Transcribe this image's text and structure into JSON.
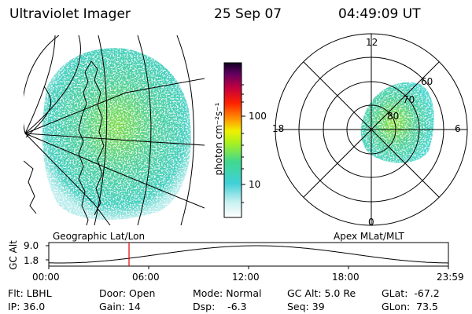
{
  "header": {
    "title": "Ultraviolet Imager",
    "date": "25 Sep 07",
    "time": "04:49:09 UT"
  },
  "colorbar": {
    "label": "photon cm⁻²s⁻¹",
    "ticks": [
      "100",
      "10"
    ]
  },
  "left_panel": {
    "caption": "Geographic Lat/Lon"
  },
  "right_panel": {
    "caption": "Apex MLat/MLT",
    "mlt_labels": {
      "top": "12",
      "right": "6",
      "bottom": "0",
      "left": "18"
    },
    "lat_labels": [
      "60",
      "70",
      "80"
    ]
  },
  "altitude_plot": {
    "ylabel": "GC Alt",
    "yticks": [
      "9.0",
      "1.8"
    ],
    "xticks": [
      "00:00",
      "06:00",
      "12:00",
      "18:00",
      "23:59"
    ],
    "marker_hour": 4.82
  },
  "info": {
    "flt": "Flt: LBHL",
    "ip": "IP: 36.0",
    "door": "Door: Open",
    "gain": "Gain: 14",
    "mode": "Mode: Normal",
    "dsp": "Dsp:    -6.3",
    "gcalt": "GC Alt: 5.0 Re",
    "seq": "Seq: 39",
    "glat": "GLat:  -67.2",
    "glon": "GLon:  73.5"
  },
  "colors": {
    "aurora_main": "#52d28c",
    "aurora_core": "#7edc4a",
    "marker": "#e00000"
  }
}
